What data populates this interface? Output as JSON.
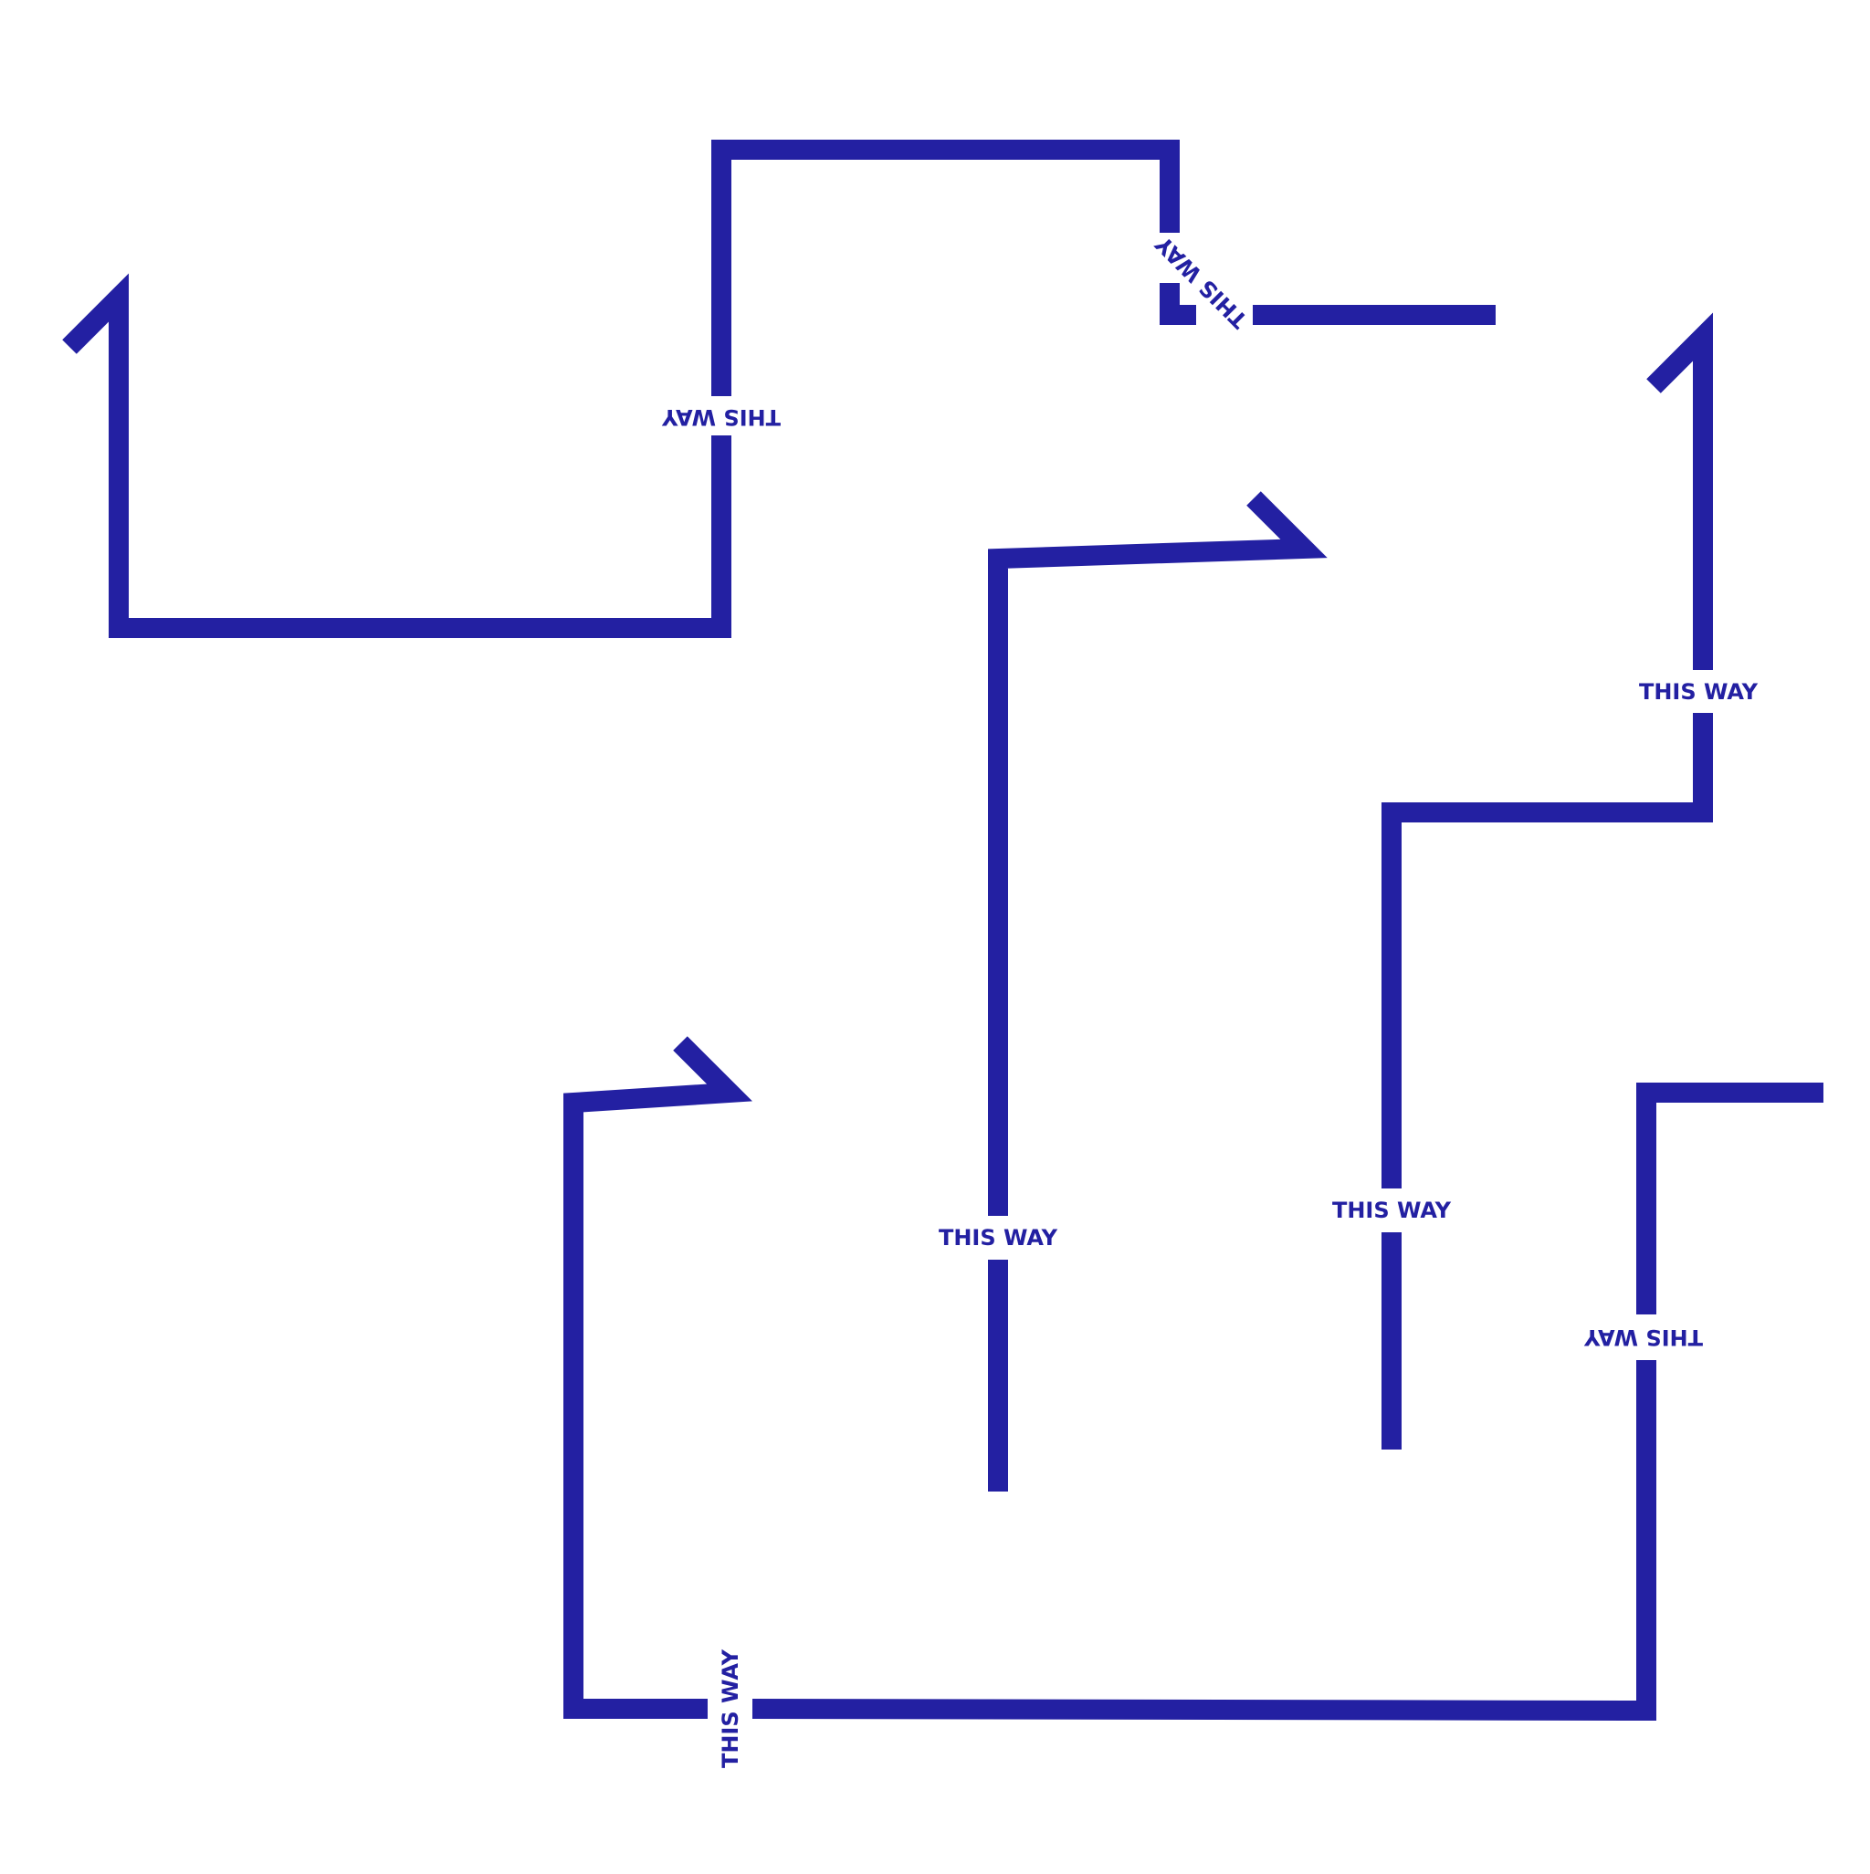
{
  "colors": {
    "line": "#2320a2",
    "background": "#ffffff"
  },
  "labels": {
    "sign_1": "THIS WAY",
    "sign_2": "THIS WAY",
    "sign_3": "THIS WAY",
    "sign_4": "THIS WAY",
    "sign_5": "THIS WAY",
    "sign_6": "THIS WAY",
    "sign_7": "THIS WAY"
  }
}
